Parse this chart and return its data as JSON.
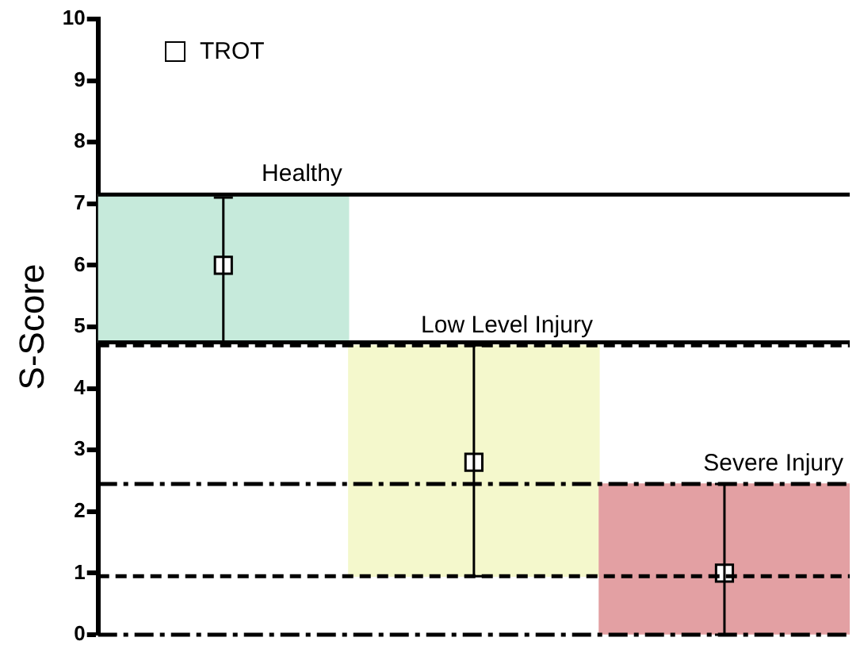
{
  "chart_data": {
    "type": "bar",
    "ylabel": "S-Score",
    "categories": [
      null,
      null,
      null
    ],
    "series": [
      {
        "type": "bar",
        "colors": [
          "#c6eadb",
          "#f4f8cc",
          "#e3a0a3"
        ],
        "values": [
          2.4,
          3.75,
          2.45
        ],
        "base": [
          4.75,
          0.95,
          0
        ]
      },
      {
        "type": "scatter",
        "name": "TROT",
        "color": "#000000",
        "values": [
          6.0,
          2.8,
          1.0
        ],
        "errors": [
          [
            4.75,
            7.1
          ],
          [
            0.95,
            4.7
          ],
          [
            0,
            2.45
          ]
        ],
        "marker": "square"
      }
    ],
    "ylim": [
      0,
      10
    ],
    "yticks": [
      0,
      1,
      2,
      3,
      4,
      5,
      6,
      7,
      8,
      9,
      10
    ],
    "grid": false,
    "legend": "top left",
    "ref_lines": [
      {
        "axis": "y",
        "value": 7.15,
        "line_style": "solid"
      },
      {
        "axis": "y",
        "value": 4.75,
        "line_style": "solid"
      },
      {
        "axis": "y",
        "value": 4.7,
        "line_style": "dashed"
      },
      {
        "axis": "y",
        "value": 0.95,
        "line_style": "dashed"
      },
      {
        "axis": "y",
        "value": 2.45,
        "line_style": "dashdot"
      },
      {
        "axis": "y",
        "value": 0,
        "line_style": "dashdot"
      }
    ],
    "annotations": [
      {
        "text": "Healthy",
        "y": 7.15
      },
      {
        "text": "Low Level Injury",
        "y": 4.7
      },
      {
        "text": "Severe Injury",
        "y": 2.45
      }
    ]
  }
}
